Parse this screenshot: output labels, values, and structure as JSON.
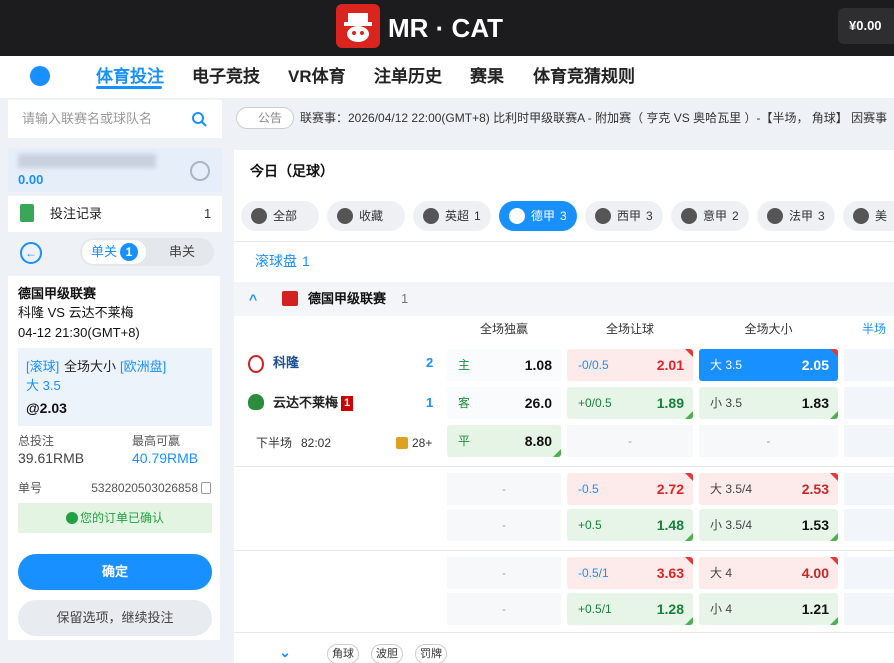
{
  "header": {
    "logo": "MR · CAT",
    "balance": "¥0.00"
  },
  "nav": {
    "items": [
      "体育投注",
      "电子竞技",
      "VR体育",
      "注单历史",
      "赛果",
      "体育竞猜规则"
    ],
    "active": 0
  },
  "sidebar": {
    "search_placeholder": "请输入联赛名或球队名",
    "balance": "0.00",
    "records": {
      "label": "投注记录",
      "count": "1"
    },
    "tabs": [
      {
        "label": "单关",
        "badge": "1"
      },
      {
        "label": "串关"
      }
    ],
    "slip": {
      "league": "德国甲级联赛",
      "match": "科隆 VS 云达不莱梅",
      "time": "04-12 21:30(GMT+8)",
      "tag": "[滚球]",
      "market": "全场大小",
      "odds_type": "[欧洲盘]",
      "selection": "大 3.5",
      "odds": "@2.03",
      "total_label": "总投注",
      "total": "39.61RMB",
      "max_label": "最高可赢",
      "max": "40.79RMB",
      "ticket_label": "单号",
      "ticket": "5328020503026858",
      "status": "您的订单已确认"
    },
    "buttons": [
      "确定",
      "保留选项，继续投注"
    ]
  },
  "notice": {
    "label": "公告",
    "text": "联赛事：2026/04/12 22:00(GMT+8) 比利时甲级联赛A - 附加赛（ 亨克 VS 奥哈瓦里 ）-【半场， 角球】 因赛事"
  },
  "main": {
    "title": "今日（足球）",
    "filters": [
      {
        "label": "全部"
      },
      {
        "label": "收藏"
      },
      {
        "label": "英超",
        "count": "1"
      },
      {
        "label": "德甲",
        "count": "3"
      },
      {
        "label": "西甲",
        "count": "3"
      },
      {
        "label": "意甲",
        "count": "2"
      },
      {
        "label": "法甲",
        "count": "3"
      },
      {
        "label": "美"
      }
    ],
    "active_filter": 3,
    "live": {
      "label": "滚球盘",
      "count": "1"
    },
    "league": {
      "name": "德国甲级联赛",
      "count": "1"
    },
    "columns": [
      "全场独赢",
      "全场让球",
      "全场大小",
      "半场"
    ],
    "match": {
      "home": {
        "name": "科隆",
        "score": "2"
      },
      "away": {
        "name": "云达不莱梅",
        "red_cards": "1",
        "score": "1"
      },
      "period": "下半场",
      "clock": "82:02",
      "more": "28+"
    },
    "markets": [
      {
        "moneyline": [
          {
            "label": "主",
            "odds": "1.08"
          },
          {
            "label": "客",
            "odds": "26.0"
          },
          {
            "label": "平",
            "odds": "8.80"
          }
        ],
        "handicap": [
          {
            "line": "-0/0.5",
            "odds": "2.01"
          },
          {
            "line": "+0/0.5",
            "odds": "1.89"
          },
          {
            "text": "-"
          }
        ],
        "totals": [
          {
            "line": "大 3.5",
            "odds": "2.05"
          },
          {
            "line": "小 3.5",
            "odds": "1.83"
          },
          {
            "text": "-"
          }
        ]
      },
      {
        "moneyline": [
          {
            "text": "-"
          },
          {
            "text": "-"
          }
        ],
        "handicap": [
          {
            "line": "-0.5",
            "odds": "2.72"
          },
          {
            "line": "+0.5",
            "odds": "1.48"
          }
        ],
        "totals": [
          {
            "line": "大 3.5/4",
            "odds": "2.53"
          },
          {
            "line": "小 3.5/4",
            "odds": "1.53"
          }
        ]
      },
      {
        "moneyline": [
          {
            "text": "-"
          },
          {
            "text": "-"
          }
        ],
        "handicap": [
          {
            "line": "-0.5/1",
            "odds": "3.63"
          },
          {
            "line": "+0.5/1",
            "odds": "1.28"
          }
        ],
        "totals": [
          {
            "line": "大 4",
            "odds": "4.00"
          },
          {
            "line": "小 4",
            "odds": "1.21"
          }
        ]
      }
    ],
    "selected": {
      "group": 0,
      "market": "totals",
      "row": 0
    },
    "more_markets": [
      "角球",
      "波胆",
      "罚牌"
    ]
  }
}
